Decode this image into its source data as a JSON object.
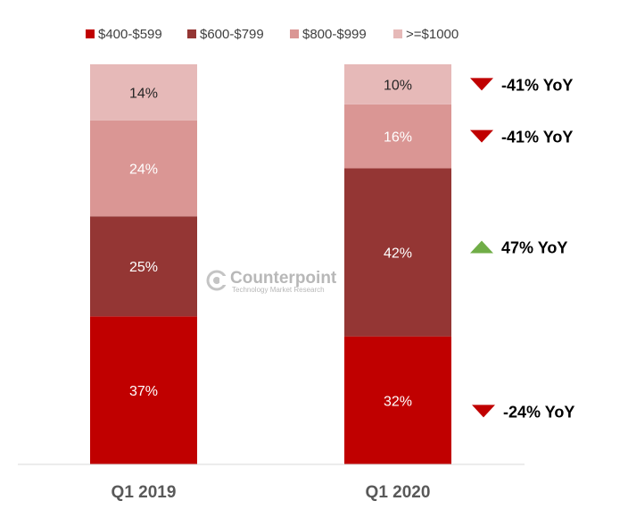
{
  "chart_data": {
    "type": "bar",
    "stacked": true,
    "percent": true,
    "categories": [
      "Q1 2019",
      "Q1 2020"
    ],
    "series": [
      {
        "name": "$400-$599",
        "color": "#c00000",
        "label_color": "#ffffff",
        "values": [
          37,
          32
        ]
      },
      {
        "name": "$600-$799",
        "color": "#943634",
        "label_color": "#ffffff",
        "values": [
          25,
          42
        ]
      },
      {
        "name": "$800-$999",
        "color": "#da9694",
        "label_color": "#ffffff",
        "values": [
          24,
          16
        ]
      },
      {
        "name": ">=$1000",
        "color": "#e6b9b8",
        "label_color": "#262626",
        "values": [
          14,
          10
        ]
      }
    ],
    "value_suffix": "%",
    "legend_position": "top",
    "grid": false,
    "ylim": [
      0,
      100
    ],
    "annotations": [
      {
        "series": ">=$1000",
        "text": "-41% YoY",
        "direction": "down",
        "color": "#c00000"
      },
      {
        "series": "$800-$999",
        "text": "-41% YoY",
        "direction": "down",
        "color": "#c00000"
      },
      {
        "series": "$600-$799",
        "text": "47% YoY",
        "direction": "up",
        "color": "#70ad47"
      },
      {
        "series": "$400-$599",
        "text": "-24% YoY",
        "direction": "down",
        "color": "#c00000"
      }
    ]
  },
  "watermark": {
    "name": "Counterpoint",
    "tagline": "Technology Market Research",
    "logo_icon": "counterpoint-logo-icon"
  }
}
